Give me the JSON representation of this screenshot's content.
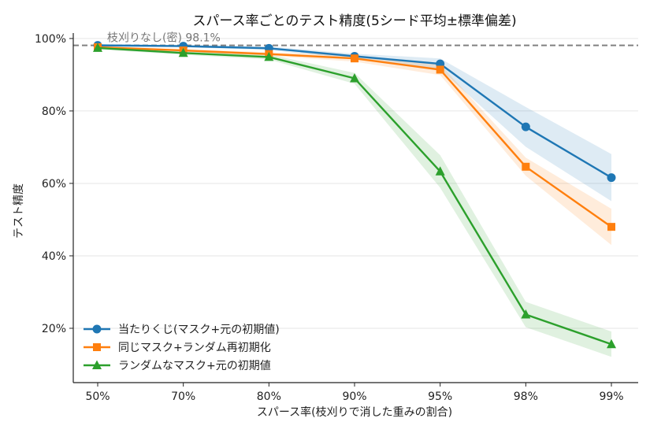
{
  "chart_data": {
    "type": "line",
    "title": "スパース率ごとのテスト精度(5シード平均±標準偏差)",
    "xlabel": "スパース率(枝刈りで消した重みの割合)",
    "ylabel": "テスト精度",
    "categories": [
      "50%",
      "70%",
      "80%",
      "90%",
      "95%",
      "98%",
      "99%"
    ],
    "y_ticks": [
      "20%",
      "40%",
      "60%",
      "80%",
      "100%"
    ],
    "y_tick_values": [
      20,
      40,
      60,
      80,
      100
    ],
    "ylim": [
      5,
      101.5
    ],
    "grid": "horizontal",
    "legend_position": "lower-left",
    "reference_line": {
      "value": 98.1,
      "label": "枝刈りなし(密) 98.1%",
      "color": "#808080"
    },
    "series": [
      {
        "name": "当たりくじ(マスク+元の初期値)",
        "color": "#1f77b4",
        "marker": "circle",
        "values": [
          98.1,
          97.9,
          97.3,
          95.1,
          93.0,
          75.6,
          61.6
        ],
        "band": [
          0.3,
          0.3,
          0.5,
          0.7,
          1.5,
          5.5,
          6.5
        ]
      },
      {
        "name": "同じマスク+ランダム再初期化",
        "color": "#ff7f0e",
        "marker": "square",
        "values": [
          97.6,
          96.7,
          95.7,
          94.5,
          91.4,
          64.6,
          48.0
        ],
        "band": [
          0.3,
          0.4,
          0.5,
          0.9,
          1.5,
          2.5,
          5.0
        ]
      },
      {
        "name": "ランダムなマスク+元の初期値",
        "color": "#2ca02c",
        "marker": "triangle",
        "values": [
          97.4,
          96.0,
          94.9,
          89.0,
          63.3,
          23.8,
          15.6
        ],
        "band": [
          0.4,
          0.5,
          0.7,
          1.5,
          4.5,
          3.5,
          3.5
        ]
      }
    ]
  }
}
